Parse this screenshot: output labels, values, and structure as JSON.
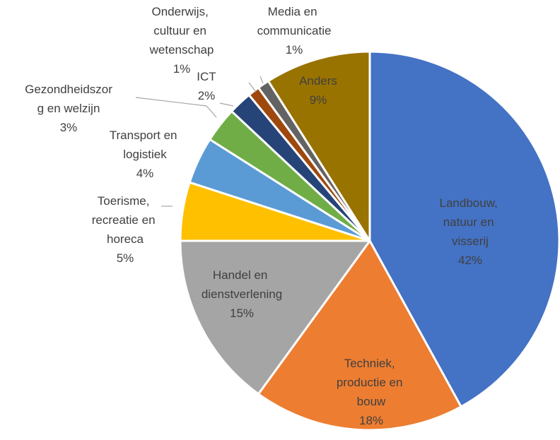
{
  "chart_data": {
    "type": "pie",
    "categories": [
      "Landbouw, natuur en visserij",
      "Techniek, productie en bouw",
      "Handel en dienstverlening",
      "Toerisme, recreatie en horeca",
      "Transport en logistiek",
      "Gezondheidszorg en welzijn",
      "ICT",
      "Onderwijs, cultuur en wetenschap",
      "Media en communicatie",
      "Anders"
    ],
    "values": [
      42,
      18,
      15,
      5,
      4,
      3,
      2,
      1,
      1,
      9
    ],
    "value_labels": [
      "42%",
      "18%",
      "15%",
      "5%",
      "4%",
      "3%",
      "2%",
      "1%",
      "1%",
      "9%"
    ],
    "colors": [
      "#4472c4",
      "#ed7d31",
      "#a5a5a5",
      "#ffc000",
      "#5b9bd5",
      "#70ad47",
      "#264478",
      "#9e480e",
      "#636363",
      "#997300"
    ]
  }
}
